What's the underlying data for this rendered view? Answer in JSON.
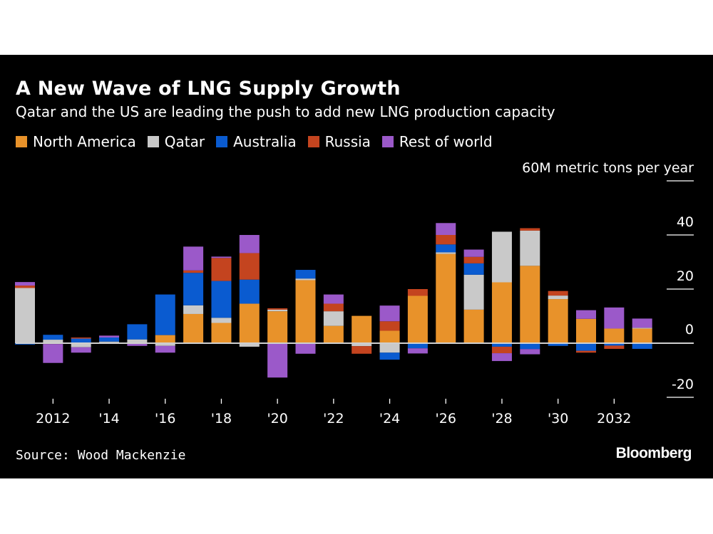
{
  "chart_data": {
    "type": "bar",
    "stacked": true,
    "title": "A New Wave of LNG Supply Growth",
    "subtitle": "Qatar and the US are leading the push to add new LNG production capacity",
    "ylabel": "60M metric tons per year",
    "ylim": [
      -22,
      62
    ],
    "yticks": [
      -20,
      0,
      20,
      40,
      60
    ],
    "ytick_labels": [
      "-20",
      "0",
      "20",
      "40",
      "60M metric tons per year"
    ],
    "legend_position": "top-left",
    "x": [
      2011,
      2012,
      2013,
      2014,
      2015,
      2016,
      2017,
      2018,
      2019,
      2020,
      2021,
      2022,
      2023,
      2024,
      2025,
      2026,
      2027,
      2028,
      2029,
      2030,
      2031,
      2032,
      2033
    ],
    "xticks": [
      2012,
      2014,
      2016,
      2018,
      2020,
      2022,
      2024,
      2026,
      2028,
      2030,
      2032
    ],
    "xtick_labels": [
      "2012",
      "'14",
      "'16",
      "'18",
      "'20",
      "'22",
      "'24",
      "'26",
      "'28",
      "'30",
      "2032"
    ],
    "series": [
      {
        "name": "North America",
        "color": "#e8922a",
        "values": [
          0,
          0,
          0,
          0.3,
          0,
          3,
          10.8,
          7.5,
          14.6,
          11.8,
          23.3,
          6.4,
          10.1,
          4.6,
          17.5,
          33,
          12.4,
          22.5,
          28.6,
          16.3,
          9,
          5.4,
          5.4
        ]
      },
      {
        "name": "Qatar",
        "color": "#c9c9c9",
        "values": [
          20.4,
          1.3,
          -1.5,
          0.3,
          1.4,
          -1,
          3.2,
          1.9,
          -1.3,
          0.6,
          0.6,
          5.4,
          -1.1,
          -3.5,
          0,
          0.6,
          12.9,
          18.7,
          13,
          1.3,
          0,
          0,
          0.3
        ]
      },
      {
        "name": "Australia",
        "color": "#0a5bd0",
        "values": [
          -0.5,
          1.8,
          1.7,
          1.5,
          5.6,
          15,
          12,
          13.6,
          8.9,
          0,
          3.2,
          0,
          0,
          -2.6,
          -1.9,
          2.9,
          4.2,
          -1.3,
          -2.2,
          -1,
          -2.8,
          -0.9,
          -2.1
        ]
      },
      {
        "name": "Russia",
        "color": "#c4441f",
        "values": [
          0.9,
          -0.3,
          0.4,
          0,
          0,
          0,
          0.9,
          8.5,
          9.8,
          0.5,
          0,
          2.8,
          -2.8,
          3.5,
          2.5,
          3.5,
          2.4,
          -2.4,
          0.9,
          1.7,
          -0.7,
          -1.2,
          0
        ]
      },
      {
        "name": "Rest of world",
        "color": "#9b59c9",
        "values": [
          1.3,
          -7,
          -2,
          0.7,
          -1,
          -2.5,
          8.8,
          0.5,
          6.7,
          -12.7,
          -3.9,
          3.4,
          0,
          5.8,
          -1.9,
          4.4,
          2.7,
          -2.9,
          -1.9,
          0,
          3.2,
          7.8,
          3.4
        ]
      }
    ],
    "source": "Source: Wood Mackenzie",
    "logo": "Bloomberg",
    "zero_line_color": "#cfcfcf"
  }
}
